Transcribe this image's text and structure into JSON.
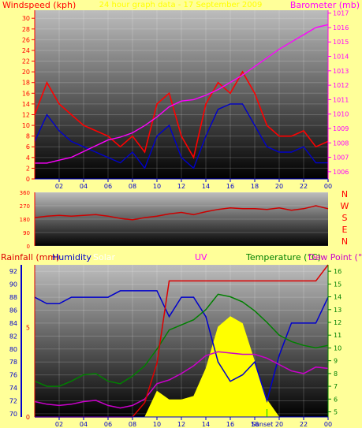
{
  "header": {
    "title": "24 hour graph data - 17 September 2009"
  },
  "chart_data": [
    {
      "type": "line",
      "name": "wind-pressure",
      "left_label": "Windspeed (kph)",
      "right_label": "Barometer (mb)",
      "x_ticks": [
        "02",
        "04",
        "06",
        "08",
        "10",
        "12",
        "14",
        "16",
        "18",
        "20",
        "22",
        "00"
      ],
      "y_ticks": [
        "0",
        "2",
        "4",
        "6",
        "8",
        "10",
        "12",
        "14",
        "16",
        "18",
        "20",
        "22",
        "24",
        "26",
        "28",
        "30"
      ],
      "y2_ticks": [
        "1006",
        "1007",
        "1008",
        "1009",
        "1010",
        "1011",
        "1012",
        "1013",
        "1014",
        "1015",
        "1016",
        "1017"
      ],
      "ylim": [
        0,
        31.5
      ],
      "y2lim": [
        1005.5,
        1017.2
      ],
      "x": [
        0,
        1,
        2,
        3,
        4,
        5,
        6,
        7,
        8,
        9,
        10,
        11,
        12,
        13,
        14,
        15,
        16,
        17,
        18,
        19,
        20,
        21,
        22,
        23,
        24
      ],
      "series": [
        {
          "color": "#ff0000",
          "values": [
            12,
            18,
            14,
            12,
            10,
            9,
            8,
            6,
            8,
            5,
            14,
            16,
            8,
            4,
            14,
            18,
            16,
            20,
            16,
            10,
            8,
            8,
            9,
            6,
            7
          ]
        },
        {
          "color": "#0000cc",
          "values": [
            7,
            12,
            9,
            7,
            6,
            5,
            4,
            3,
            5,
            2,
            8,
            10,
            4,
            2,
            8,
            13,
            14,
            14,
            10,
            6,
            5,
            5,
            6,
            3,
            3
          ]
        },
        {
          "color": "#ff00ff",
          "values": [
            1006.6,
            1006.6,
            1006.8,
            1007.0,
            1007.4,
            1007.8,
            1008.2,
            1008.4,
            1008.7,
            1009.2,
            1009.8,
            1010.5,
            1010.9,
            1011.0,
            1011.3,
            1011.7,
            1012.2,
            1012.7,
            1013.3,
            1013.9,
            1014.5,
            1015.0,
            1015.5,
            1016.0,
            1016.2
          ]
        }
      ]
    },
    {
      "type": "line",
      "name": "wind-direction",
      "y_ticks": [
        "360",
        "270",
        "180",
        "90",
        "0"
      ],
      "compass": [
        "N",
        "W",
        "S",
        "E",
        "N"
      ],
      "ylim": [
        0,
        360
      ],
      "x": [
        0,
        1,
        2,
        3,
        4,
        5,
        6,
        7,
        8,
        9,
        10,
        11,
        12,
        13,
        14,
        15,
        16,
        17,
        18,
        19,
        20,
        21,
        22,
        23,
        24
      ],
      "series": [
        {
          "color": "#cc0000",
          "values": [
            190,
            200,
            205,
            200,
            205,
            210,
            200,
            185,
            175,
            190,
            200,
            215,
            225,
            210,
            230,
            245,
            255,
            250,
            250,
            245,
            255,
            240,
            250,
            270,
            250
          ]
        }
      ]
    },
    {
      "type": "line",
      "name": "rain-humidity-temp",
      "labels": {
        "rainfall": "Rainfall (mm)",
        "humidity": "Humidity",
        "solar": "Solar",
        "uv": "UV",
        "temperature": "Temperature (°C)",
        "dewpoint": "Dew Point (°C)",
        "sunset": "Sunset"
      },
      "x_ticks": [
        "02",
        "04",
        "06",
        "08",
        "10",
        "12",
        "14",
        "16",
        "18",
        "20",
        "22",
        "00"
      ],
      "rain_ticks": [
        "0",
        "5"
      ],
      "hum_ticks": [
        "70",
        "72",
        "74",
        "76",
        "78",
        "80",
        "82",
        "84",
        "86",
        "88",
        "90",
        "92"
      ],
      "temp_ticks": [
        "5",
        "6",
        "7",
        "8",
        "9",
        "10",
        "11",
        "12",
        "13",
        "14",
        "15",
        "16"
      ],
      "humlim": [
        69.5,
        93
      ],
      "templim": [
        4.6,
        16.5
      ],
      "rainlim": [
        0,
        8.5
      ],
      "x": [
        0,
        1,
        2,
        3,
        4,
        5,
        6,
        7,
        8,
        9,
        10,
        11,
        12,
        13,
        14,
        15,
        16,
        17,
        18,
        19,
        20,
        21,
        22,
        23,
        24
      ],
      "series": [
        {
          "name_key": "humidity",
          "color": "#0000cc",
          "axis": "hum",
          "values": [
            88,
            87,
            87,
            88,
            88,
            88,
            88,
            89,
            89,
            89,
            89,
            85,
            88,
            88,
            85,
            78,
            75,
            76,
            78,
            72,
            79,
            84,
            84,
            84,
            88
          ]
        },
        {
          "name_key": "temperature",
          "color": "#008000",
          "axis": "temp",
          "values": [
            7.4,
            7.0,
            7.0,
            7.4,
            7.9,
            8.0,
            7.4,
            7.2,
            7.8,
            8.6,
            9.9,
            11.4,
            11.8,
            12.2,
            13.0,
            14.2,
            14.0,
            13.6,
            12.9,
            12.0,
            11.0,
            10.5,
            10.2,
            10.0,
            10.2
          ]
        },
        {
          "name_key": "dewpoint",
          "color": "#cc00cc",
          "axis": "temp",
          "values": [
            5.8,
            5.6,
            5.5,
            5.6,
            5.8,
            5.9,
            5.5,
            5.3,
            5.5,
            6.0,
            7.2,
            7.5,
            8.0,
            8.6,
            9.4,
            9.7,
            9.6,
            9.5,
            9.5,
            9.2,
            8.7,
            8.2,
            8.0,
            8.5,
            8.4
          ]
        },
        {
          "name_key": "rainfall",
          "color": "#dd0000",
          "axis": "rain",
          "values": [
            0,
            0,
            0,
            0,
            0,
            0,
            0,
            0,
            0,
            0.8,
            3.0,
            7.6,
            7.6,
            7.6,
            7.6,
            7.6,
            7.6,
            7.6,
            7.6,
            7.6,
            7.6,
            7.6,
            7.6,
            7.6,
            8.5
          ]
        }
      ],
      "solar_values": [
        0,
        0,
        0,
        0,
        0,
        0,
        0,
        0,
        0,
        0,
        1.5,
        1.0,
        1.0,
        1.2,
        2.8,
        5.2,
        5.8,
        5.4,
        3.2,
        1.0,
        0,
        0,
        0,
        0,
        0
      ]
    }
  ]
}
